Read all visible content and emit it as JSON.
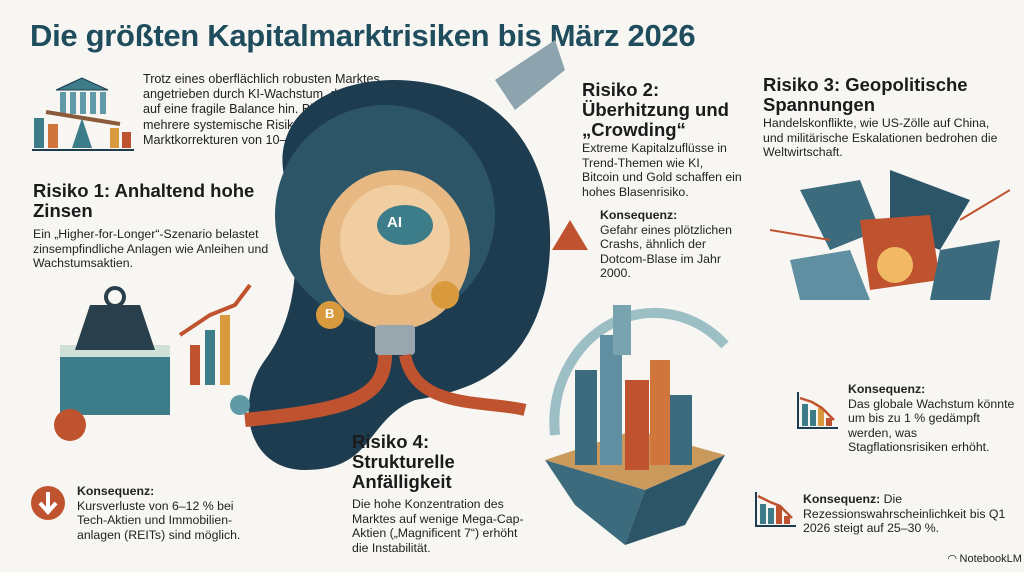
{
  "title": "Die größten Kapitalmarktrisiken bis März 2026",
  "intro": "Trotz eines oberflächlich robusten Marktes, angetrieben durch KI-Wachstum, deuten Analysen auf eine fragile Balance hin. Bis Anfang 2026 könnten mehrere systemische Risiken zu erheblichen Marktkorrekturen von 10–20 % führen.",
  "risks": [
    {
      "heading": "Risiko 1: Anhaltend hohe Zinsen",
      "body": "Ein „Higher-for-Longer“-Szenario belastet zinsempfindliche Anlagen wie Anleihen und Wachstumsaktien.",
      "consequence_label": "Konsequenz:",
      "consequence": "Kursverluste von 6–12 % bei Tech-Aktien und Immobilien-anlagen (REITs) sind möglich.",
      "icon": "arrow-down-circle-icon"
    },
    {
      "heading": "Risiko 2: Überhitzung und „Crowding“",
      "body": "Extreme Kapitalzuflüsse in Trend-Themen wie KI, Bitcoin und Gold schaffen ein hohes Blasenrisiko.",
      "consequence_label": "Konsequenz:",
      "consequence": "Gefahr eines plötzlichen Crashs, ähnlich der Dotcom-Blase im Jahr 2000.",
      "icon": "warning-triangle-icon"
    },
    {
      "heading": "Risiko 3: Geopolitische Spannungen",
      "body": "Handelskonflikte, wie US-Zölle auf China, und militärische Eskalationen bedrohen die Weltwirtschaft.",
      "consequence_label": "Konsequenz:",
      "consequence": "Das globale Wachstum könnte um bis zu 1 % gedämpft werden, was Stagflationsrisiken erhöht.",
      "icon": "declining-chart-icon"
    },
    {
      "heading": "Risiko 4: Strukturelle Anfälligkeit",
      "body": "Die hohe Konzentration des Marktes auf wenige Mega-Cap-Aktien („Magnificent 7“) erhöht die Instabilität.",
      "consequence_label": "Konsequenz:",
      "consequence": "Die Rezessionswahrscheinlichkeit bis Q1 2026 steigt auf 25–30 %.",
      "icon": "declining-chart-icon"
    }
  ],
  "illustration": {
    "bulb_label": "AI",
    "coin_label": "B"
  },
  "brand": "NotebookLM",
  "colors": {
    "title": "#1f4d5e",
    "navy": "#1d3c4f",
    "teal": "#3d7d8a",
    "rust": "#c0532f",
    "gold": "#d89a3c"
  }
}
